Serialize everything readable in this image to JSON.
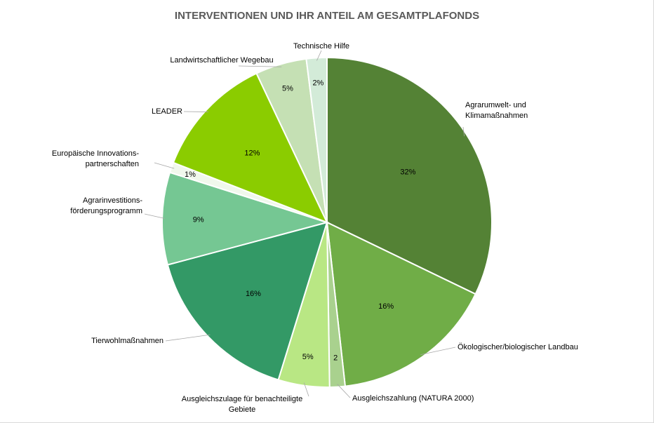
{
  "chart_data": {
    "type": "pie",
    "title": "INTERVENTIONEN UND IHR ANTEIL AM GESAMTPLAFONDS",
    "slices": [
      {
        "name": "Agrarumwelt- und Klimamaßnahmen",
        "name_lines": [
          "Agrarumwelt- und",
          "Klimamaßnahmen"
        ],
        "value": 32,
        "label": "32%",
        "color": "#548235"
      },
      {
        "name": "Ökologischer/biologischer Landbau",
        "name_lines": [
          "Ökologischer/biologischer Landbau"
        ],
        "value": 16,
        "label": "16%",
        "color": "#70ad47"
      },
      {
        "name": "Ausgleichszahlung (NATURA 2000)",
        "name_lines": [
          "Ausgleichszahlung  (NATURA 2000)"
        ],
        "value": 1.5,
        "label": "2",
        "color": "#a9d18e"
      },
      {
        "name": "Ausgleichszulage für benachteiligte Gebiete",
        "name_lines": [
          "Ausgleichszulage für benachteiligte",
          "Gebiete"
        ],
        "value": 5,
        "label": "5%",
        "color": "#b9e784"
      },
      {
        "name": "Tierwohlmaßnahmen",
        "name_lines": [
          "Tierwohlmaßnahmen"
        ],
        "value": 16,
        "label": "16%",
        "color": "#339966"
      },
      {
        "name": "Agrarinvestitionsförderungsprogramm",
        "name_lines": [
          "Agrarinvestitions-",
          "förderungsprogramm"
        ],
        "value": 9,
        "label": "9%",
        "color": "#75c793"
      },
      {
        "name": "Europäische Innovationspartnerschaften",
        "name_lines": [
          "Europäische Innovations-",
          "partnerschaften"
        ],
        "value": 1,
        "label": "1%",
        "color": "#f0f8ec"
      },
      {
        "name": "LEADER",
        "name_lines": [
          "LEADER"
        ],
        "value": 12,
        "label": "12%",
        "color": "#8bcc00"
      },
      {
        "name": "Landwirtschaftlicher Wegebau",
        "name_lines": [
          "Landwirtschaftlicher Wegebau"
        ],
        "value": 5,
        "label": "5%",
        "color": "#c5e0b4"
      },
      {
        "name": "Technische Hilfe",
        "name_lines": [
          "Technische Hilfe"
        ],
        "value": 2,
        "label": "2%",
        "color": "#d3ebd8"
      }
    ],
    "start_angle_deg": 0,
    "direction": "clockwise",
    "legend": "none",
    "category_labels": "outside-with-leader-lines",
    "value_labels": "inside"
  }
}
